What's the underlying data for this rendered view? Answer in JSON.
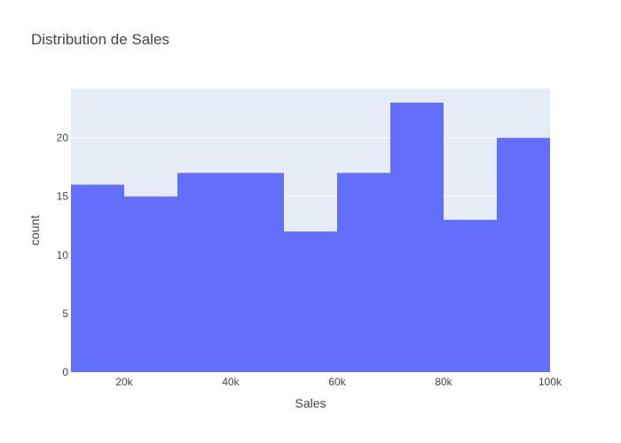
{
  "chart_data": {
    "type": "bar",
    "title": "Distribution de Sales",
    "xlabel": "Sales",
    "ylabel": "count",
    "bins": [
      {
        "x0": 10000,
        "x1": 20000,
        "count": 16
      },
      {
        "x0": 20000,
        "x1": 30000,
        "count": 15
      },
      {
        "x0": 30000,
        "x1": 40000,
        "count": 17
      },
      {
        "x0": 40000,
        "x1": 50000,
        "count": 17
      },
      {
        "x0": 50000,
        "x1": 60000,
        "count": 12
      },
      {
        "x0": 60000,
        "x1": 70000,
        "count": 17
      },
      {
        "x0": 70000,
        "x1": 80000,
        "count": 23
      },
      {
        "x0": 80000,
        "x1": 90000,
        "count": 13
      },
      {
        "x0": 90000,
        "x1": 100000,
        "count": 20
      }
    ],
    "xlim": [
      10000,
      100000
    ],
    "ylim": [
      0,
      24.2
    ],
    "xticks": [
      {
        "value": 20000,
        "label": "20k"
      },
      {
        "value": 40000,
        "label": "40k"
      },
      {
        "value": 60000,
        "label": "60k"
      },
      {
        "value": 80000,
        "label": "80k"
      },
      {
        "value": 100000,
        "label": "100k"
      }
    ],
    "yticks": [
      {
        "value": 0,
        "label": "0"
      },
      {
        "value": 5,
        "label": "5"
      },
      {
        "value": 10,
        "label": "10"
      },
      {
        "value": 15,
        "label": "15"
      },
      {
        "value": 20,
        "label": "20"
      }
    ],
    "grid": true,
    "colors": {
      "bar": "#636efa",
      "plot_bg": "#e5ecf6",
      "grid": "#ffffff",
      "text": "#444444"
    }
  }
}
